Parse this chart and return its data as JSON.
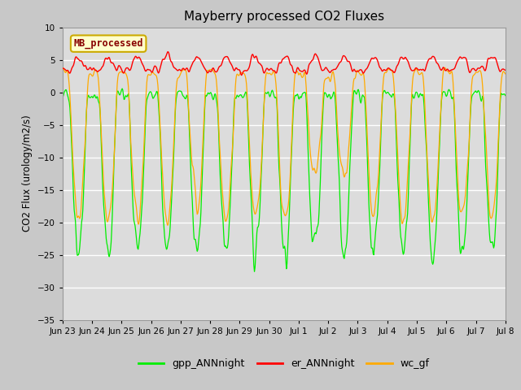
{
  "title": "Mayberry processed CO2 Fluxes",
  "ylabel": "CO2 Flux (urology/m2/s)",
  "ylim": [
    -35,
    10
  ],
  "yticks": [
    -35,
    -30,
    -25,
    -20,
    -15,
    -10,
    -5,
    0,
    5,
    10
  ],
  "legend_label": "MB_processed",
  "legend_box_facecolor": "#ffffcc",
  "legend_box_edge": "#ccaa00",
  "legend_label_color": "#880000",
  "line_green": "#00ee00",
  "line_red": "#ff0000",
  "line_orange": "#ffaa00",
  "fig_bg": "#c8c8c8",
  "plot_bg": "#dcdcdc",
  "grid_color": "#ffffff",
  "series_labels": [
    "gpp_ANNnight",
    "er_ANNnight",
    "wc_gf"
  ],
  "series_colors": [
    "#00ee00",
    "#ff0000",
    "#ffaa00"
  ],
  "tick_labels": [
    "Jun 23",
    "Jun 24",
    "Jun 25",
    "Jun 26",
    "Jun 27",
    "Jun 28",
    "Jun 29",
    "Jun 30",
    "Jul 1",
    "Jul 2",
    "Jul 3",
    "Jul 4",
    "Jul 5",
    "Jul 6",
    "Jul 7",
    "Jul 8"
  ]
}
